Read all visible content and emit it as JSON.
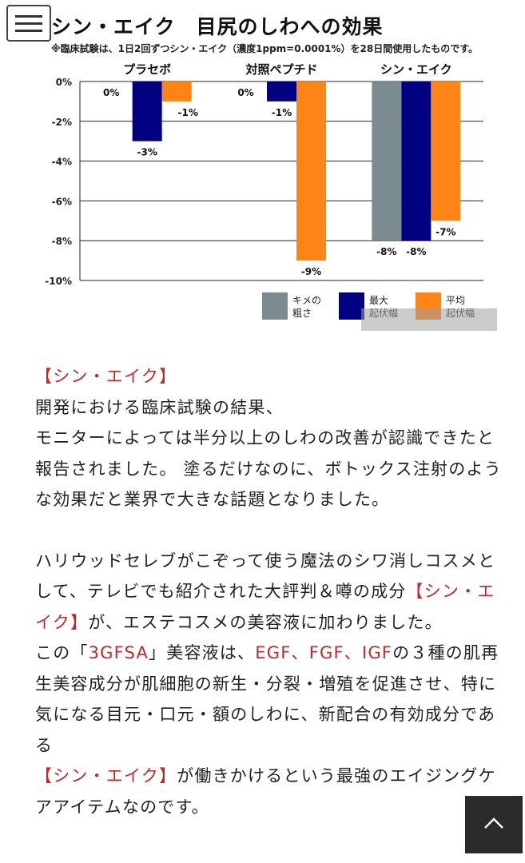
{
  "menu": {
    "icon": "hamburger-menu-icon"
  },
  "chart_data": {
    "type": "bar",
    "title": "シン・エイク　目尻のしわへの効果",
    "note": "※臨床試験は、1日2回ずつシン・エイク（濃度1ppm=0.0001%）を28日間使用したものです。",
    "categories": [
      "プラセボ",
      "対照ペプチド",
      "シン・エイク"
    ],
    "series": [
      {
        "name": "キメの粗さ",
        "color": "#7a8c90",
        "values": [
          0,
          0,
          -8
        ],
        "labels": [
          "0%",
          "0%",
          "-8%"
        ]
      },
      {
        "name": "最大起伏幅",
        "color": "#000080",
        "values": [
          -3,
          -1,
          -8
        ],
        "labels": [
          "-3%",
          "-1%",
          "-8%"
        ]
      },
      {
        "name": "平均起伏幅",
        "color": "#ff8418",
        "values": [
          -1,
          -9,
          -7
        ],
        "labels": [
          "-1%",
          "-9%",
          "-7%"
        ]
      }
    ],
    "legend_labels": [
      [
        "キメの",
        "粗さ"
      ],
      [
        "最大",
        "起伏幅"
      ],
      [
        "平均",
        "起伏幅"
      ]
    ],
    "ylim": [
      -10,
      0
    ],
    "yticks": [
      0,
      -2,
      -4,
      -6,
      -8,
      -10
    ],
    "ytick_labels": [
      "0%",
      "-2%",
      "-4%",
      "-6%",
      "-8%",
      "-10%"
    ],
    "grid": true,
    "legend": "bottom-right"
  },
  "article": {
    "heading": "【シン・エイク】",
    "para1_line1": "開発における臨床試験の結果、",
    "para1_rest": "モニターによっては半分以上のしわの改善が認識できたと報告されました。 塗るだけなのに、ボトックス注射のような効果だと業界で大きな話題となりました。",
    "para2_intro": "ハリウッドセレブがこぞって使う魔法のシワ消しコスメとして、テレビでも紹介された大評判＆噂の成分",
    "para2_highlight": "【シン・エイク】",
    "para2_after": "が、エステコスメの美容液に加わりました。",
    "para3_a": "この「",
    "para3_product": "3GFSA",
    "para3_b": "」美容液は、",
    "para3_egf": "EGF",
    "para3_sep1": "、",
    "para3_fgf": "FGF",
    "para3_sep2": "、",
    "para3_igf": "IGF",
    "para3_c": "の３種の肌再生美容成分が肌細胞の新生・分裂・増殖を促進させ、特に気になる目元・口元・額のしわに、新配合の有効成分である",
    "para3_highlight": "【シン・エイク】",
    "para3_d": "が働きかけるという最強のエイジングケアアイテムなのです。"
  },
  "scroll_top": {
    "icon": "chevron-up-icon"
  }
}
